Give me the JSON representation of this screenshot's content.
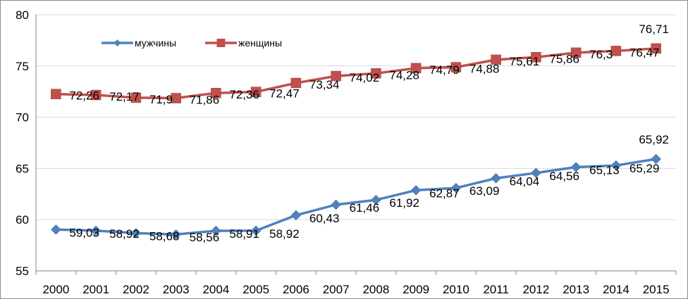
{
  "chart_data": {
    "type": "line",
    "title": "",
    "xlabel": "",
    "ylabel": "",
    "x": [
      "2000",
      "2001",
      "2002",
      "2003",
      "2004",
      "2005",
      "2006",
      "2007",
      "2008",
      "2009",
      "2010",
      "2011",
      "2012",
      "2013",
      "2014",
      "2015"
    ],
    "ylim": [
      55,
      80
    ],
    "yticks": [
      "55",
      "60",
      "65",
      "70",
      "75",
      "80"
    ],
    "grid": "horizontal",
    "legend_position": "top-left",
    "series": [
      {
        "name": "мужчины",
        "color": "#4F81BD",
        "marker": "diamond",
        "values": [
          59.03,
          58.92,
          58.68,
          58.56,
          58.91,
          58.92,
          60.43,
          61.46,
          61.92,
          62.87,
          63.09,
          64.04,
          64.56,
          65.13,
          65.29,
          65.92
        ],
        "labels": [
          "59,03",
          "58,92",
          "58,68",
          "58,56",
          "58,91",
          "58,92",
          "60,43",
          "61,46",
          "61,92",
          "62,87",
          "63,09",
          "64,04",
          "64,56",
          "65,13",
          "65,29",
          "65,92"
        ]
      },
      {
        "name": "женщины",
        "color": "#C0504D",
        "marker": "square",
        "values": [
          72.26,
          72.17,
          71.9,
          71.86,
          72.36,
          72.47,
          73.34,
          74.02,
          74.28,
          74.79,
          74.88,
          75.61,
          75.86,
          76.3,
          76.47,
          76.71
        ],
        "labels": [
          "72,26",
          "72,17",
          "71,9",
          "71,86",
          "72,36",
          "72,47",
          "73,34",
          "74,02",
          "74,28",
          "74,79",
          "74,88",
          "75,61",
          "75,86",
          "76,3",
          "76,47",
          "76,71"
        ]
      }
    ]
  }
}
